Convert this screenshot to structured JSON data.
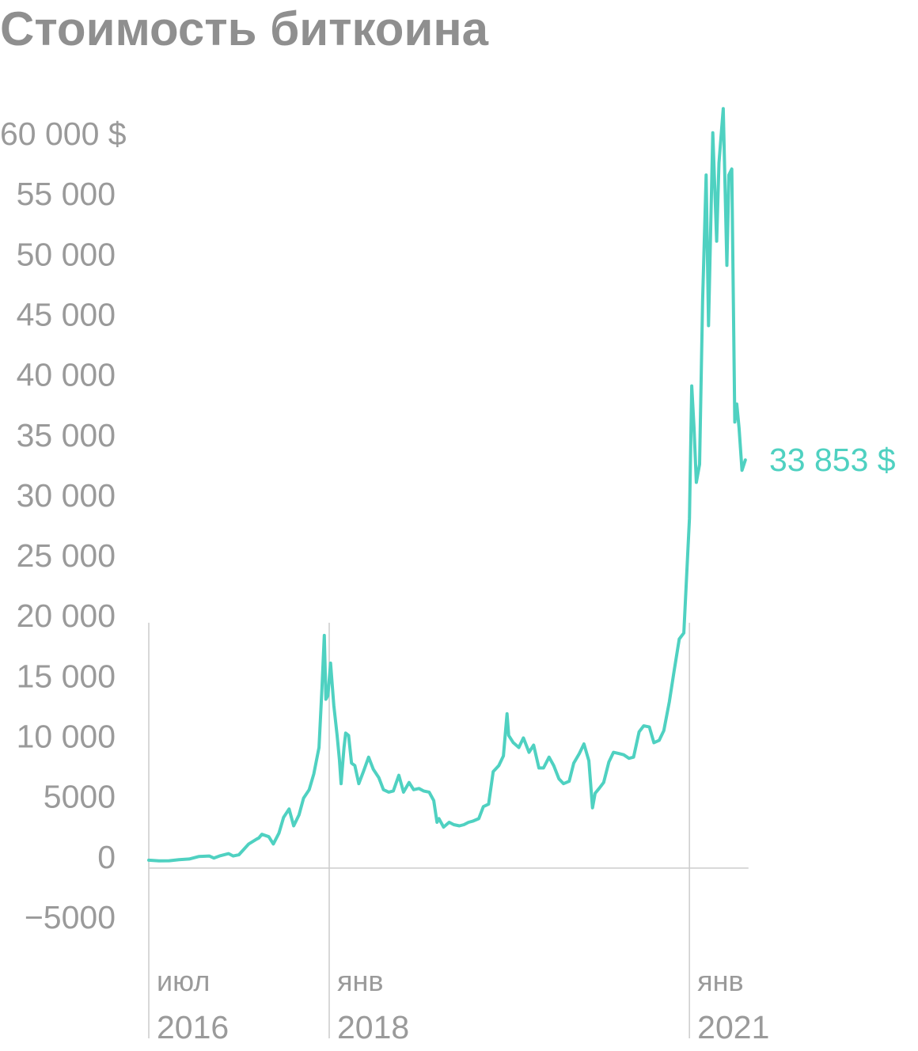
{
  "chart_data": {
    "type": "line",
    "title": "Стоимость биткоина",
    "xlabel": "",
    "ylabel": "",
    "ylim": [
      -5000,
      60000
    ],
    "y_ticks": [
      {
        "value": 60000,
        "label": "60 000 $"
      },
      {
        "value": 55000,
        "label": "55 000"
      },
      {
        "value": 50000,
        "label": "50 000"
      },
      {
        "value": 45000,
        "label": "45 000"
      },
      {
        "value": 40000,
        "label": "40 000"
      },
      {
        "value": 35000,
        "label": "35 000"
      },
      {
        "value": 30000,
        "label": "30 000"
      },
      {
        "value": 25000,
        "label": "25 000"
      },
      {
        "value": 20000,
        "label": "20 000"
      },
      {
        "value": 15000,
        "label": "15 000"
      },
      {
        "value": 10000,
        "label": "10 000"
      },
      {
        "value": 5000,
        "label": "5000"
      },
      {
        "value": 0,
        "label": "0"
      },
      {
        "value": -5000,
        "label": "−5000"
      }
    ],
    "x_ticks": [
      {
        "value": "2016-07-01",
        "month": "июл",
        "year": "2016"
      },
      {
        "value": "2018-01-01",
        "month": "янв",
        "year": "2018"
      },
      {
        "value": "2021-01-01",
        "month": "янв",
        "year": "2021"
      }
    ],
    "grid": false,
    "colors": {
      "line": "#4fd1c1",
      "axis": "#cccccc",
      "text": "#9a9a9a",
      "title": "#8f8f8f"
    },
    "end_label": "33 853 $",
    "series": [
      {
        "x": [
          "2016-07-01",
          "2016-08-01",
          "2016-09-01",
          "2016-10-01",
          "2016-11-01",
          "2016-12-01",
          "2017-01-01",
          "2017-01-15",
          "2017-02-01",
          "2017-03-01",
          "2017-03-15",
          "2017-04-01",
          "2017-05-01",
          "2017-05-25",
          "2017-06-01",
          "2017-06-10",
          "2017-07-01",
          "2017-07-15",
          "2017-08-01",
          "2017-08-15",
          "2017-09-01",
          "2017-09-15",
          "2017-10-01",
          "2017-10-15",
          "2017-11-01",
          "2017-11-15",
          "2017-12-01",
          "2017-12-10",
          "2017-12-17",
          "2017-12-22",
          "2017-12-28",
          "2018-01-05",
          "2018-01-15",
          "2018-01-25",
          "2018-02-01",
          "2018-02-06",
          "2018-02-15",
          "2018-02-20",
          "2018-03-01",
          "2018-03-10",
          "2018-03-20",
          "2018-04-01",
          "2018-04-15",
          "2018-05-01",
          "2018-05-15",
          "2018-06-01",
          "2018-06-15",
          "2018-07-01",
          "2018-07-15",
          "2018-08-01",
          "2018-08-15",
          "2018-09-01",
          "2018-09-15",
          "2018-10-01",
          "2018-10-15",
          "2018-11-01",
          "2018-11-15",
          "2018-11-25",
          "2018-12-01",
          "2018-12-15",
          "2019-01-01",
          "2019-01-15",
          "2019-02-01",
          "2019-02-15",
          "2019-03-01",
          "2019-03-15",
          "2019-04-01",
          "2019-04-15",
          "2019-05-01",
          "2019-05-15",
          "2019-06-01",
          "2019-06-15",
          "2019-06-26",
          "2019-07-01",
          "2019-07-15",
          "2019-08-01",
          "2019-08-15",
          "2019-09-01",
          "2019-09-15",
          "2019-10-01",
          "2019-10-15",
          "2019-11-01",
          "2019-11-15",
          "2019-12-01",
          "2019-12-15",
          "2020-01-01",
          "2020-01-15",
          "2020-02-01",
          "2020-02-15",
          "2020-03-01",
          "2020-03-12",
          "2020-03-20",
          "2020-04-01",
          "2020-04-15",
          "2020-05-01",
          "2020-05-15",
          "2020-06-01",
          "2020-06-15",
          "2020-07-01",
          "2020-07-15",
          "2020-08-01",
          "2020-08-15",
          "2020-09-01",
          "2020-09-15",
          "2020-10-01",
          "2020-10-15",
          "2020-11-01",
          "2020-11-15",
          "2020-12-01",
          "2020-12-15",
          "2021-01-01",
          "2021-01-08",
          "2021-01-15",
          "2021-01-22",
          "2021-02-01",
          "2021-02-10",
          "2021-02-21",
          "2021-02-28",
          "2021-03-13",
          "2021-03-25",
          "2021-04-01",
          "2021-04-14",
          "2021-04-25",
          "2021-05-01",
          "2021-05-10",
          "2021-05-19",
          "2021-05-25",
          "2021-06-01",
          "2021-06-10",
          "2021-06-20"
        ],
        "y": [
          650,
          600,
          610,
          700,
          750,
          960,
          1000,
          830,
          1000,
          1200,
          1000,
          1100,
          2000,
          2400,
          2500,
          2800,
          2600,
          2000,
          2900,
          4200,
          4900,
          3500,
          4400,
          5800,
          6500,
          7800,
          10000,
          15000,
          19300,
          14000,
          14300,
          17000,
          13500,
          11000,
          9000,
          7000,
          10000,
          11200,
          11000,
          8700,
          8500,
          7000,
          8000,
          9200,
          8200,
          7500,
          6500,
          6300,
          6400,
          7700,
          6300,
          7100,
          6500,
          6600,
          6400,
          6300,
          5600,
          3800,
          4100,
          3400,
          3800,
          3600,
          3500,
          3600,
          3800,
          3900,
          4100,
          5100,
          5300,
          8000,
          8500,
          9300,
          12800,
          11000,
          10400,
          10000,
          10800,
          9600,
          10200,
          8300,
          8300,
          9200,
          8500,
          7400,
          7000,
          7200,
          8700,
          9500,
          10300,
          8900,
          5000,
          6200,
          6600,
          7100,
          8800,
          9600,
          9500,
          9400,
          9100,
          9200,
          11300,
          11800,
          11700,
          10400,
          10600,
          11400,
          13800,
          16300,
          19000,
          19500,
          29000,
          40000,
          36500,
          32000,
          33500,
          47000,
          57500,
          45000,
          61000,
          52000,
          58500,
          63000,
          50000,
          57500,
          58000,
          37000,
          38500,
          36500,
          33000,
          33853
        ]
      }
    ]
  }
}
